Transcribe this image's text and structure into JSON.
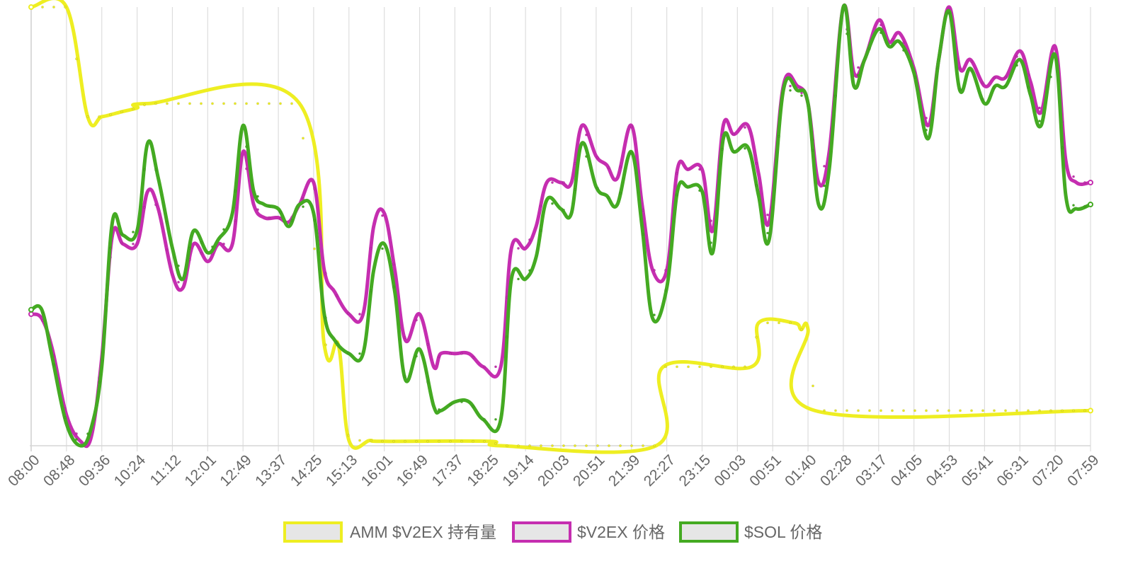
{
  "chart_data": {
    "type": "line",
    "title": "",
    "xlabel": "",
    "ylabel": "",
    "y_axis_labels_shown": false,
    "grid": "vertical",
    "legend_position": "bottom",
    "x_tick_labels": [
      "08:00",
      "08:48",
      "09:36",
      "10:24",
      "11:12",
      "12:01",
      "12:49",
      "13:37",
      "14:25",
      "15:13",
      "16:01",
      "16:49",
      "17:37",
      "18:25",
      "19:14",
      "20:03",
      "20:51",
      "21:39",
      "22:27",
      "23:15",
      "00:03",
      "00:51",
      "01:40",
      "02:28",
      "03:17",
      "04:05",
      "04:53",
      "05:41",
      "06:31",
      "07:20",
      "07:59"
    ],
    "ylim": [
      0,
      100
    ],
    "series": [
      {
        "name": "AMM $V2EX 持有量",
        "color": "#eeee22",
        "points": [
          [
            0,
            100
          ],
          [
            1,
            100
          ],
          [
            1.6,
            75
          ],
          [
            2,
            75
          ],
          [
            2.5,
            76
          ],
          [
            3,
            77
          ],
          [
            3.3,
            78
          ],
          [
            7.6,
            78
          ],
          [
            8.3,
            23
          ],
          [
            8.7,
            23
          ],
          [
            9,
            1.2
          ],
          [
            9.6,
            1.2
          ],
          [
            10,
            1
          ],
          [
            13,
            1
          ],
          [
            13.3,
            0
          ],
          [
            17.7,
            0
          ],
          [
            17.9,
            18
          ],
          [
            20.4,
            18
          ],
          [
            20.6,
            28
          ],
          [
            21.6,
            28
          ],
          [
            21.8,
            26.5
          ],
          [
            22,
            26.5
          ],
          [
            22.2,
            8
          ],
          [
            30,
            8
          ]
        ]
      },
      {
        "name": "$V2EX 价格",
        "color": "#c52eb0",
        "points": [
          [
            0,
            30
          ],
          [
            0.3,
            29
          ],
          [
            0.6,
            22
          ],
          [
            1,
            7
          ],
          [
            1.4,
            1
          ],
          [
            1.7,
            2
          ],
          [
            2,
            20
          ],
          [
            2.3,
            48
          ],
          [
            2.6,
            46
          ],
          [
            3,
            46
          ],
          [
            3.3,
            58
          ],
          [
            3.6,
            54
          ],
          [
            4,
            39
          ],
          [
            4.3,
            36
          ],
          [
            4.6,
            46
          ],
          [
            5,
            42
          ],
          [
            5.3,
            46
          ],
          [
            5.7,
            46
          ],
          [
            6,
            67
          ],
          [
            6.3,
            55
          ],
          [
            6.6,
            52
          ],
          [
            7,
            52
          ],
          [
            7.3,
            51
          ],
          [
            7.6,
            55
          ],
          [
            8,
            60
          ],
          [
            8.3,
            40
          ],
          [
            8.6,
            35
          ],
          [
            9,
            30
          ],
          [
            9.4,
            30
          ],
          [
            9.7,
            50
          ],
          [
            10,
            53
          ],
          [
            10.3,
            40
          ],
          [
            10.6,
            24
          ],
          [
            11,
            30
          ],
          [
            11.4,
            18
          ],
          [
            11.6,
            21
          ],
          [
            12,
            21
          ],
          [
            12.4,
            21
          ],
          [
            12.8,
            18
          ],
          [
            13.3,
            18
          ],
          [
            13.6,
            45
          ],
          [
            14,
            45
          ],
          [
            14.3,
            50
          ],
          [
            14.6,
            60
          ],
          [
            15,
            60
          ],
          [
            15.3,
            60
          ],
          [
            15.6,
            73
          ],
          [
            16,
            66
          ],
          [
            16.3,
            64
          ],
          [
            16.6,
            61
          ],
          [
            17,
            73
          ],
          [
            17.3,
            55
          ],
          [
            17.6,
            40
          ],
          [
            18,
            40
          ],
          [
            18.3,
            63
          ],
          [
            18.6,
            63
          ],
          [
            19,
            63
          ],
          [
            19.3,
            49
          ],
          [
            19.6,
            73
          ],
          [
            19.9,
            71
          ],
          [
            20.3,
            73
          ],
          [
            20.6,
            62
          ],
          [
            20.9,
            51
          ],
          [
            21.3,
            82
          ],
          [
            21.7,
            82
          ],
          [
            22,
            78
          ],
          [
            22.3,
            60
          ],
          [
            22.6,
            67
          ],
          [
            23,
            100
          ],
          [
            23.3,
            85
          ],
          [
            23.6,
            88
          ],
          [
            24,
            97
          ],
          [
            24.3,
            92
          ],
          [
            24.6,
            94
          ],
          [
            25,
            86
          ],
          [
            25.4,
            73
          ],
          [
            25.7,
            88
          ],
          [
            26,
            100
          ],
          [
            26.3,
            86
          ],
          [
            26.6,
            88
          ],
          [
            27,
            82
          ],
          [
            27.3,
            84
          ],
          [
            27.6,
            84
          ],
          [
            28,
            90
          ],
          [
            28.3,
            83
          ],
          [
            28.6,
            76
          ],
          [
            29,
            91
          ],
          [
            29.3,
            65
          ],
          [
            29.6,
            60
          ],
          [
            30,
            60
          ]
        ]
      },
      {
        "name": "$SOL 价格",
        "color": "#44aa22",
        "points": [
          [
            0,
            31
          ],
          [
            0.3,
            31
          ],
          [
            0.6,
            20
          ],
          [
            1,
            5
          ],
          [
            1.4,
            0
          ],
          [
            1.7,
            4
          ],
          [
            2,
            18
          ],
          [
            2.3,
            51
          ],
          [
            2.6,
            48
          ],
          [
            3,
            49
          ],
          [
            3.3,
            69
          ],
          [
            3.6,
            61
          ],
          [
            4,
            45
          ],
          [
            4.3,
            38
          ],
          [
            4.6,
            49
          ],
          [
            5,
            44
          ],
          [
            5.3,
            47
          ],
          [
            5.7,
            53
          ],
          [
            6,
            73
          ],
          [
            6.3,
            58
          ],
          [
            6.6,
            55
          ],
          [
            7,
            54
          ],
          [
            7.3,
            50
          ],
          [
            7.6,
            55
          ],
          [
            8,
            53
          ],
          [
            8.3,
            30
          ],
          [
            8.6,
            24
          ],
          [
            9,
            21
          ],
          [
            9.4,
            21
          ],
          [
            9.7,
            40
          ],
          [
            10,
            46
          ],
          [
            10.3,
            35
          ],
          [
            10.6,
            15
          ],
          [
            11,
            22
          ],
          [
            11.4,
            9
          ],
          [
            11.6,
            8
          ],
          [
            12,
            10
          ],
          [
            12.4,
            10
          ],
          [
            12.8,
            6
          ],
          [
            13.3,
            6
          ],
          [
            13.6,
            38
          ],
          [
            14,
            38
          ],
          [
            14.3,
            43
          ],
          [
            14.6,
            56
          ],
          [
            15,
            54
          ],
          [
            15.3,
            53
          ],
          [
            15.6,
            69
          ],
          [
            16,
            59
          ],
          [
            16.3,
            57
          ],
          [
            16.6,
            55
          ],
          [
            17,
            67
          ],
          [
            17.3,
            50
          ],
          [
            17.6,
            29
          ],
          [
            18,
            36
          ],
          [
            18.3,
            58
          ],
          [
            18.6,
            59
          ],
          [
            19,
            58
          ],
          [
            19.3,
            44
          ],
          [
            19.6,
            70
          ],
          [
            19.9,
            67
          ],
          [
            20.3,
            68
          ],
          [
            20.6,
            57
          ],
          [
            20.9,
            47
          ],
          [
            21.3,
            81
          ],
          [
            21.7,
            81
          ],
          [
            22,
            78
          ],
          [
            22.3,
            55
          ],
          [
            22.6,
            63
          ],
          [
            23,
            100
          ],
          [
            23.3,
            82
          ],
          [
            23.6,
            88
          ],
          [
            24,
            95
          ],
          [
            24.3,
            91
          ],
          [
            24.6,
            92
          ],
          [
            25,
            85
          ],
          [
            25.4,
            70
          ],
          [
            25.7,
            88
          ],
          [
            26,
            99
          ],
          [
            26.3,
            81
          ],
          [
            26.6,
            86
          ],
          [
            27,
            78
          ],
          [
            27.3,
            82
          ],
          [
            27.6,
            82
          ],
          [
            28,
            88
          ],
          [
            28.3,
            80
          ],
          [
            28.6,
            73
          ],
          [
            29,
            89
          ],
          [
            29.3,
            57
          ],
          [
            29.6,
            54
          ],
          [
            30,
            55
          ]
        ]
      }
    ]
  }
}
